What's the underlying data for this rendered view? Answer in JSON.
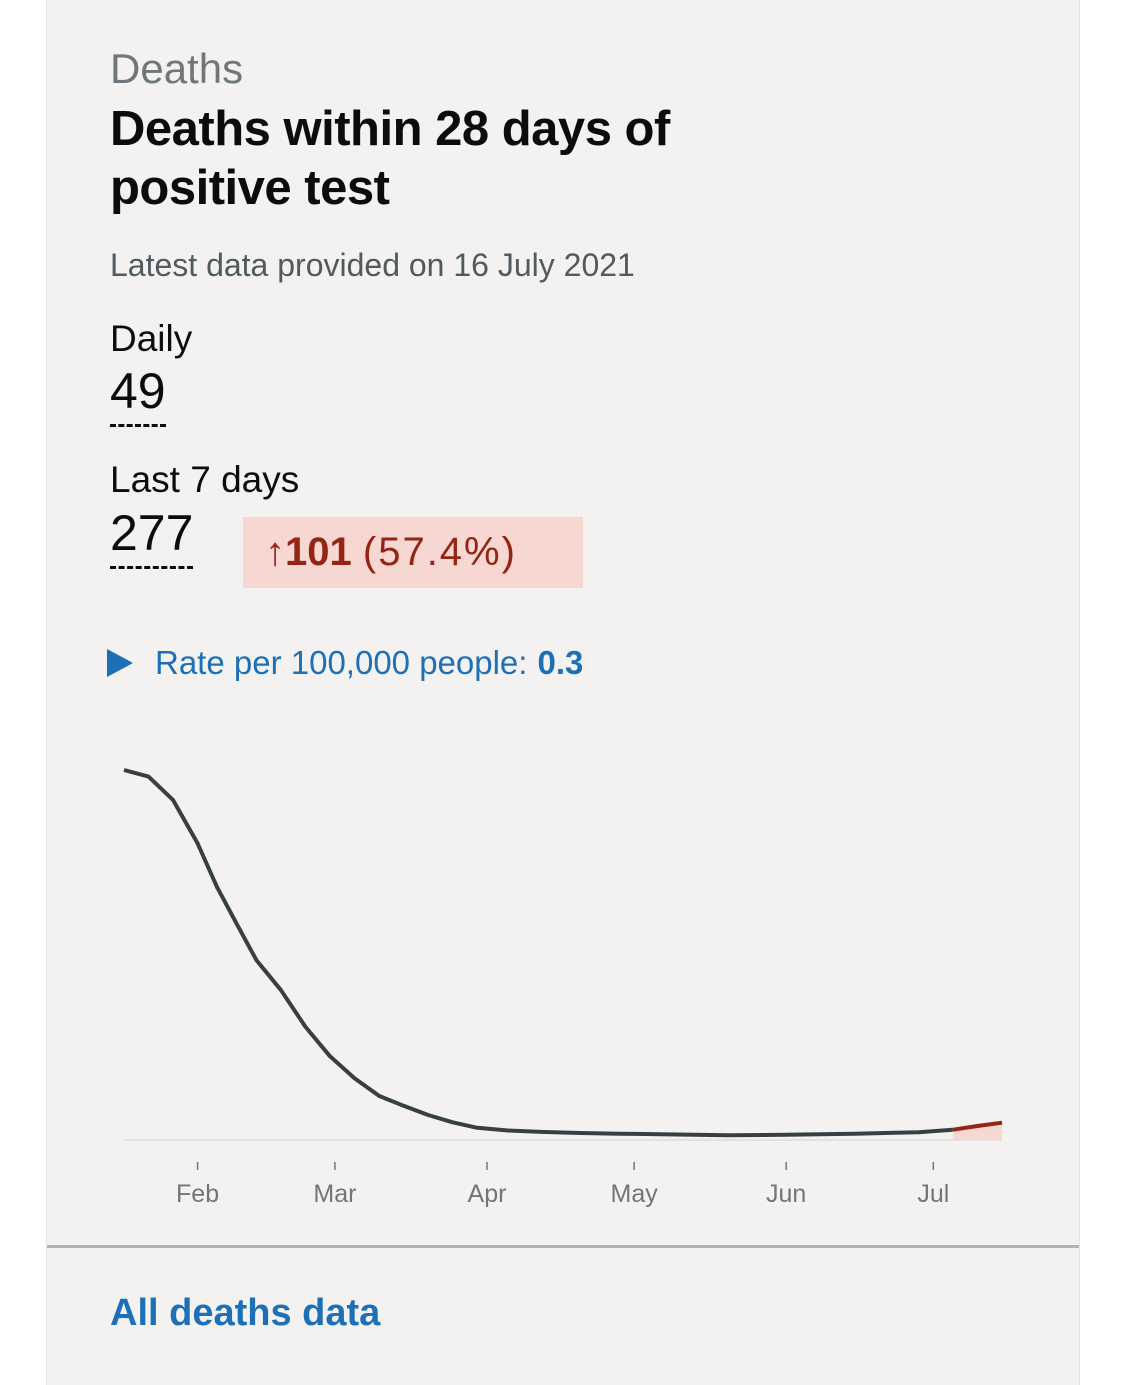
{
  "card": {
    "caption": "Deaths",
    "title": "Deaths within 28 days of positive test",
    "updated": "Latest data provided on 16 July 2021",
    "daily": {
      "label": "Daily",
      "value": "49"
    },
    "last7": {
      "label": "Last 7 days",
      "value": "277",
      "change_arrow": "↑",
      "change_value": "101",
      "change_pct": "(57.4%)"
    },
    "rate": {
      "label": "Rate per 100,000 people:",
      "value": "0.3"
    },
    "link": "All deaths data"
  },
  "colors": {
    "line": "#383f43",
    "trend_up": "#942514",
    "trend_bg": "#f6d7d2",
    "link": "#1d70b8"
  },
  "chart_data": {
    "type": "line",
    "x_tick_labels": [
      "Feb",
      "Mar",
      "Apr",
      "May",
      "Jun",
      "Jul"
    ],
    "x": [
      "2021-01-17",
      "2021-01-22",
      "2021-01-27",
      "2021-02-01",
      "2021-02-05",
      "2021-02-09",
      "2021-02-13",
      "2021-02-18",
      "2021-02-23",
      "2021-02-28",
      "2021-03-05",
      "2021-03-10",
      "2021-03-15",
      "2021-03-20",
      "2021-03-25",
      "2021-03-30",
      "2021-04-05",
      "2021-04-12",
      "2021-04-20",
      "2021-04-28",
      "2021-05-08",
      "2021-05-20",
      "2021-06-01",
      "2021-06-15",
      "2021-06-28",
      "2021-07-05",
      "2021-07-10",
      "2021-07-15"
    ],
    "series": [
      {
        "values": [
          1000,
          982,
          918,
          800,
          680,
          580,
          482,
          400,
          300,
          220,
          160,
          112,
          85,
          60,
          40,
          25,
          18,
          14,
          11,
          9,
          7,
          5,
          6,
          9,
          13,
          20,
          30,
          39
        ]
      }
    ],
    "highlight_from": "2021-07-01",
    "grid": false
  }
}
